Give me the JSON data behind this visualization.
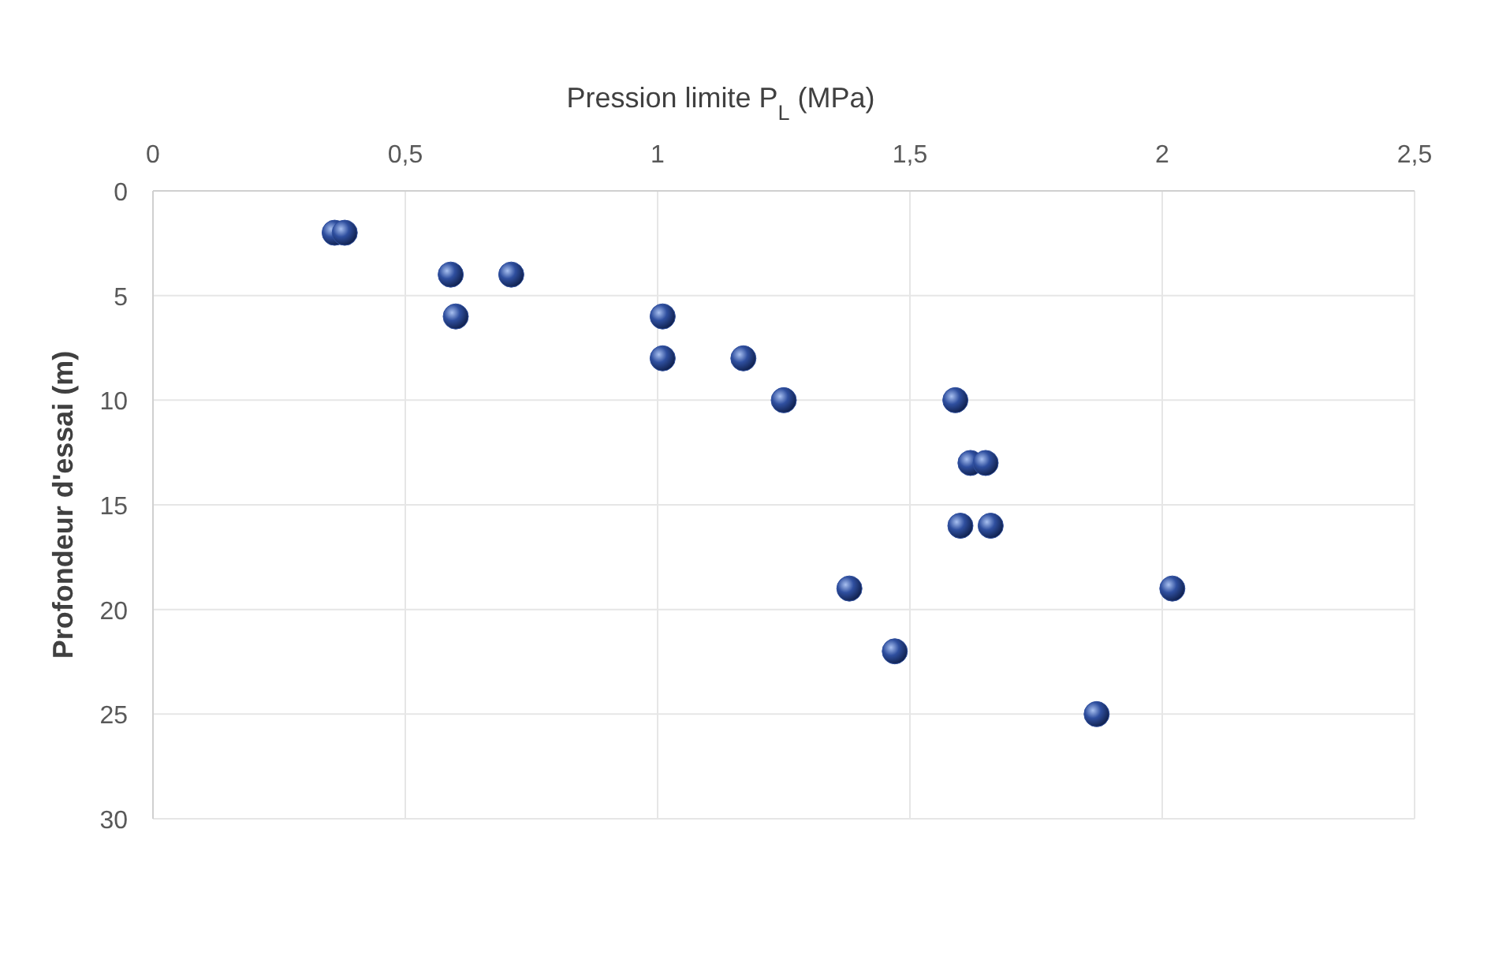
{
  "chart_data": {
    "type": "scatter",
    "xlabel": "Pression limite P$_{L}$ (MPa)",
    "ylabel": "Profondeur d'essai (m)",
    "x": [
      0.36,
      0.38,
      0.59,
      0.71,
      0.6,
      1.01,
      1.01,
      1.17,
      1.25,
      1.59,
      1.62,
      1.65,
      1.6,
      1.66,
      1.38,
      2.02,
      1.47,
      1.87
    ],
    "values": [
      2,
      2,
      4,
      4,
      6,
      6,
      8,
      8,
      10,
      10,
      13,
      13,
      16,
      16,
      19,
      19,
      22,
      25
    ],
    "color": "#2f4f9f",
    "marker": "circle",
    "xlim": [
      0,
      2.5
    ],
    "xticks": [
      0,
      {
        "value": 0.5,
        "label": "0,5"
      },
      1,
      {
        "value": 1.5,
        "label": "1,5"
      },
      2,
      {
        "value": 2.5,
        "label": "2,5"
      }
    ],
    "ylim": [
      30,
      0
    ],
    "yticks": [
      0,
      5,
      10,
      15,
      20,
      25,
      30
    ],
    "grid": true
  }
}
